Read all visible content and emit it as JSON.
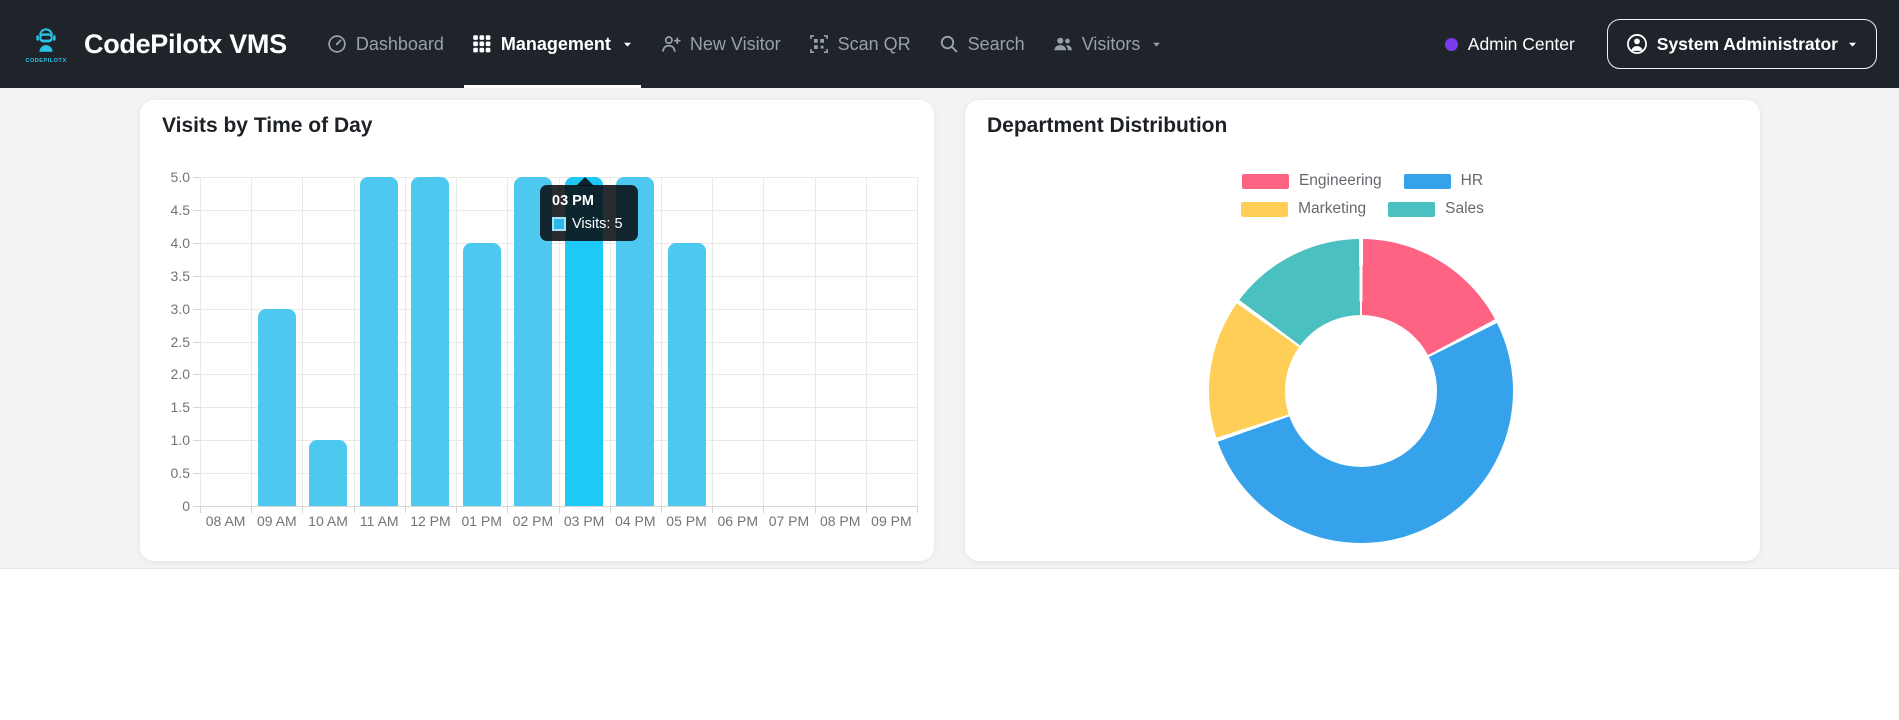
{
  "navbar": {
    "brand": "CodePilotx VMS",
    "logo_text": "CODEPILOTX",
    "items": [
      {
        "label": "Dashboard",
        "icon": "speedometer-icon",
        "active": false,
        "caret": false
      },
      {
        "label": "Management",
        "icon": "grid-icon",
        "active": true,
        "caret": true
      },
      {
        "label": "New Visitor",
        "icon": "person-plus-icon",
        "active": false,
        "caret": false
      },
      {
        "label": "Scan QR",
        "icon": "qr-scan-icon",
        "active": false,
        "caret": false
      },
      {
        "label": "Search",
        "icon": "search-icon",
        "active": false,
        "caret": false
      },
      {
        "label": "Visitors",
        "icon": "people-icon",
        "active": false,
        "caret": true
      }
    ],
    "admin_badge": {
      "label": "Admin Center",
      "dot_color": "#7c3aed"
    },
    "user_menu": {
      "label": "System Administrator",
      "icon": "person-circle-icon"
    }
  },
  "cards": {
    "visits": {
      "title": "Visits by Time of Day"
    },
    "departments": {
      "title": "Department Distribution"
    }
  },
  "chart_data": [
    {
      "type": "bar",
      "title": "Visits by Time of Day",
      "categories": [
        "08 AM",
        "09 AM",
        "10 AM",
        "11 AM",
        "12 PM",
        "01 PM",
        "02 PM",
        "03 PM",
        "04 PM",
        "05 PM",
        "06 PM",
        "07 PM",
        "08 PM",
        "09 PM"
      ],
      "values": [
        0,
        3,
        1,
        5,
        5,
        4,
        5,
        5,
        5,
        4,
        0,
        0,
        0,
        0
      ],
      "series_name": "Visits",
      "xlabel": "",
      "ylabel": "",
      "ylim": [
        0,
        5
      ],
      "ytick_step": 0.5,
      "grid": true,
      "bar_color": "#4dc9f0",
      "highlight_index": 7,
      "highlight_color": "#1ec9f7",
      "tooltip": {
        "title": "03 PM",
        "label": "Visits: 5"
      }
    },
    {
      "type": "pie",
      "title": "Department Distribution",
      "legend_position": "top",
      "legend_rows": [
        [
          "Engineering",
          "HR"
        ],
        [
          "Marketing",
          "Sales"
        ]
      ],
      "segments": [
        {
          "label": "Engineering",
          "color": "#ff6384",
          "percent": 17.4
        },
        {
          "label": "HR",
          "color": "#36a2eb",
          "percent": 52.4
        },
        {
          "label": "Marketing",
          "color": "#ffce56",
          "percent": 15.2
        },
        {
          "label": "Sales",
          "color": "#4bc0c0",
          "percent": 15.0
        }
      ]
    }
  ]
}
